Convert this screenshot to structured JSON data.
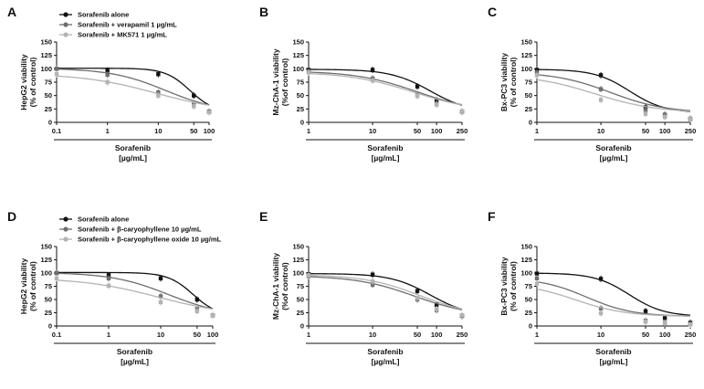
{
  "chart_data": [
    {
      "panel": "A",
      "type": "line",
      "xscale": "log",
      "xlabel": [
        "Sorafenib",
        "[µg/mL]"
      ],
      "ylabel": [
        "HepG2 viability",
        "(% of control)"
      ],
      "xticks": [
        "0.1",
        "1",
        "10",
        "50",
        "100"
      ],
      "xlim": [
        0.1,
        100
      ],
      "yticks": [
        "0",
        "25",
        "50",
        "75",
        "100",
        "125",
        "150"
      ],
      "ylim": [
        0,
        150
      ],
      "legend": "top-left",
      "series": [
        {
          "name": "Sorafenib alone",
          "color": "#111111",
          "x": [
            0.1,
            1,
            10,
            50,
            100
          ],
          "y": [
            100,
            97,
            90,
            50,
            20
          ],
          "ec50": 42,
          "hill": 1.8
        },
        {
          "name": "Sorafenib + verapamil 1 µg/mL",
          "color": "#6e6e6e",
          "x": [
            0.1,
            1,
            10,
            50,
            100
          ],
          "y": [
            100,
            89,
            56,
            33,
            19
          ],
          "ec50": 14,
          "hill": 0.8
        },
        {
          "name": "Sorafenib + MK571 1 µg/mL",
          "color": "#b3b3b3",
          "x": [
            0.1,
            1,
            10,
            50,
            100
          ],
          "y": [
            90,
            75,
            50,
            30,
            19
          ],
          "ec50": 9,
          "hill": 0.6
        }
      ]
    },
    {
      "panel": "B",
      "type": "line",
      "xscale": "log",
      "xlabel": [
        "Sorafenib",
        "[µg/mL]"
      ],
      "ylabel": [
        "Mz-ChA-1 viability",
        "(%of control)"
      ],
      "xticks": [
        "1",
        "10",
        "50",
        "100",
        "250"
      ],
      "xlim": [
        1,
        250
      ],
      "yticks": [
        "0",
        "25",
        "50",
        "75",
        "100",
        "125",
        "150"
      ],
      "ylim": [
        0,
        150
      ],
      "series": [
        {
          "name": "Sorafenib alone",
          "color": "#111111",
          "x": [
            1,
            10,
            50,
            100,
            250
          ],
          "y": [
            98,
            98,
            67,
            41,
            20
          ],
          "ec50": 80,
          "hill": 1.4
        },
        {
          "name": "Sorafenib + verapamil 1 µg/mL",
          "color": "#6e6e6e",
          "x": [
            1,
            10,
            50,
            100,
            250
          ],
          "y": [
            95,
            82,
            52,
            35,
            20
          ],
          "ec50": 50,
          "hill": 0.9
        },
        {
          "name": "Sorafenib + MK571 1 µg/mL",
          "color": "#b3b3b3",
          "x": [
            1,
            10,
            50,
            100,
            250
          ],
          "y": [
            93,
            78,
            49,
            33,
            21
          ],
          "ec50": 45,
          "hill": 0.85
        }
      ]
    },
    {
      "panel": "C",
      "type": "line",
      "xscale": "log",
      "xlabel": [
        "Sorafenib",
        "[µg/mL]"
      ],
      "ylabel": [
        "Bx-PC3 viability",
        "(% of control)"
      ],
      "xticks": [
        "1",
        "10",
        "50",
        "100",
        "250"
      ],
      "xlim": [
        1,
        250
      ],
      "yticks": [
        "0",
        "25",
        "50",
        "75",
        "100",
        "125",
        "150"
      ],
      "ylim": [
        0,
        150
      ],
      "series": [
        {
          "name": "Sorafenib alone",
          "color": "#111111",
          "x": [
            1,
            10,
            50,
            100,
            250
          ],
          "y": [
            98,
            88,
            28,
            14,
            6
          ],
          "ec50": 28,
          "hill": 1.6
        },
        {
          "name": "Sorafenib + verapamil 1 µg/mL",
          "color": "#6e6e6e",
          "x": [
            1,
            10,
            50,
            100,
            250
          ],
          "y": [
            93,
            62,
            23,
            13,
            7
          ],
          "ec50": 14,
          "hill": 1.0
        },
        {
          "name": "Sorafenib + MK571 1 µg/mL",
          "color": "#b3b3b3",
          "x": [
            1,
            10,
            50,
            100,
            250
          ],
          "y": [
            88,
            42,
            16,
            10,
            6
          ],
          "ec50": 8,
          "hill": 0.9
        }
      ]
    },
    {
      "panel": "D",
      "type": "line",
      "xscale": "log",
      "xlabel": [
        "Sorafenib",
        "[µg/mL]"
      ],
      "ylabel": [
        "HepG2 viability",
        "(% of control)"
      ],
      "xticks": [
        "0.1",
        "1",
        "10",
        "50",
        "100"
      ],
      "xlim": [
        0.1,
        100
      ],
      "yticks": [
        "0",
        "25",
        "50",
        "75",
        "100",
        "125",
        "150"
      ],
      "ylim": [
        0,
        150
      ],
      "legend": "top-left",
      "series": [
        {
          "name": "Sorafenib alone",
          "color": "#111111",
          "x": [
            0.1,
            1,
            10,
            50,
            100
          ],
          "y": [
            100,
            96,
            90,
            50,
            20
          ],
          "ec50": 42,
          "hill": 1.8
        },
        {
          "name": "Sorafenib + β-caryophyllene 10 µg/mL",
          "color": "#6e6e6e",
          "x": [
            0.1,
            1,
            10,
            50,
            100
          ],
          "y": [
            100,
            90,
            56,
            32,
            20
          ],
          "ec50": 14,
          "hill": 0.8
        },
        {
          "name": "Sorafenib + β-caryophyllene oxide 10 µg/mL",
          "color": "#b3b3b3",
          "x": [
            0.1,
            1,
            10,
            50,
            100
          ],
          "y": [
            90,
            76,
            45,
            28,
            20
          ],
          "ec50": 9,
          "hill": 0.6
        }
      ]
    },
    {
      "panel": "E",
      "type": "line",
      "xscale": "log",
      "xlabel": [
        "Sorafenib",
        "[µg/mL]"
      ],
      "ylabel": [
        "Mz-ChA-1 viability",
        "(%of control)"
      ],
      "xticks": [
        "1",
        "10",
        "50",
        "100",
        "250"
      ],
      "xlim": [
        1,
        250
      ],
      "yticks": [
        "0",
        "25",
        "50",
        "75",
        "100",
        "125",
        "150"
      ],
      "ylim": [
        0,
        150
      ],
      "series": [
        {
          "name": "Sorafenib alone",
          "color": "#111111",
          "x": [
            1,
            10,
            50,
            100,
            250
          ],
          "y": [
            98,
            97,
            66,
            40,
            19
          ],
          "ec50": 80,
          "hill": 1.4
        },
        {
          "name": "Sorafenib + β-caryophyllene 10 µg/mL",
          "color": "#6e6e6e",
          "x": [
            1,
            10,
            50,
            100,
            250
          ],
          "y": [
            94,
            78,
            50,
            30,
            20
          ],
          "ec50": 45,
          "hill": 0.95
        },
        {
          "name": "Sorafenib + β-caryophyllene oxide 10 µg/mL",
          "color": "#b3b3b3",
          "x": [
            1,
            10,
            50,
            100,
            250
          ],
          "y": [
            96,
            84,
            53,
            32,
            20
          ],
          "ec50": 55,
          "hill": 1.0
        }
      ]
    },
    {
      "panel": "F",
      "type": "line",
      "xscale": "log",
      "xlabel": [
        "Sorafenib",
        "[µg/mL]"
      ],
      "ylabel": [
        "Bx-PC3 viability",
        "(% of control)"
      ],
      "xticks": [
        "1",
        "10",
        "50",
        "100",
        "250"
      ],
      "xlim": [
        1,
        250
      ],
      "yticks": [
        "0",
        "25",
        "50",
        "75",
        "100",
        "125",
        "150"
      ],
      "ylim": [
        0,
        150
      ],
      "series": [
        {
          "name": "Sorafenib alone",
          "color": "#111111",
          "x": [
            1,
            10,
            50,
            100,
            250
          ],
          "y": [
            99,
            89,
            28,
            15,
            6
          ],
          "ec50": 28,
          "hill": 1.6
        },
        {
          "name": "Sorafenib + β-caryophyllene 10 µg/mL",
          "color": "#6e6e6e",
          "x": [
            1,
            10,
            50,
            100,
            250
          ],
          "y": [
            90,
            33,
            10,
            6,
            3
          ],
          "ec50": 6,
          "hill": 1.2
        },
        {
          "name": "Sorafenib + β-caryophyllene oxide 10 µg/mL",
          "color": "#b3b3b3",
          "x": [
            1,
            10,
            50,
            100,
            250
          ],
          "y": [
            80,
            24,
            8,
            5,
            3
          ],
          "ec50": 4,
          "hill": 1.1
        }
      ]
    }
  ]
}
